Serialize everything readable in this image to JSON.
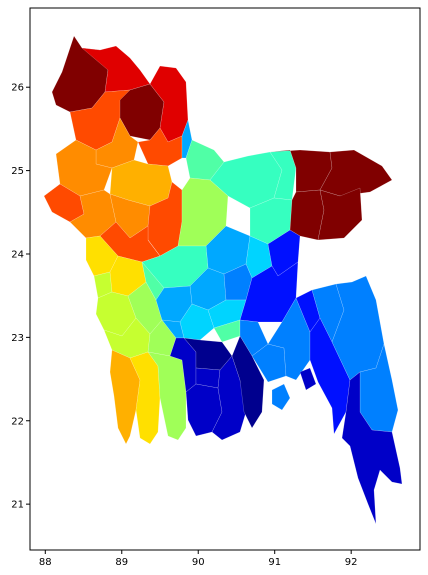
{
  "map": {
    "x_tick_labels": [
      "88",
      "89",
      "90",
      "91",
      "92"
    ],
    "y_tick_labels": [
      "26",
      "25",
      "24",
      "23",
      "22",
      "21"
    ],
    "x_ticks": [
      88,
      89,
      90,
      91,
      92
    ],
    "y_ticks": [
      26,
      25,
      24,
      23,
      22,
      21
    ],
    "xlim": [
      87.8,
      92.9
    ],
    "ylim": [
      20.45,
      26.95
    ],
    "colormap": "jet",
    "colors": {
      "dark-red": "#800000",
      "red": "#e00000",
      "orange-red": "#ff4a00",
      "orange": "#ff8c00",
      "amber": "#ffb000",
      "yellow": "#ffe000",
      "yellow-green": "#c6ff30",
      "light-green": "#a0ff58",
      "spring-green": "#50ffa6",
      "aqua-green": "#36ffc0",
      "cyan": "#00d4ff",
      "sky-blue": "#00a8ff",
      "azure": "#0080ff",
      "blue": "#0010ff",
      "medium-blue": "#0000c8",
      "navy": "#00008e"
    }
  }
}
